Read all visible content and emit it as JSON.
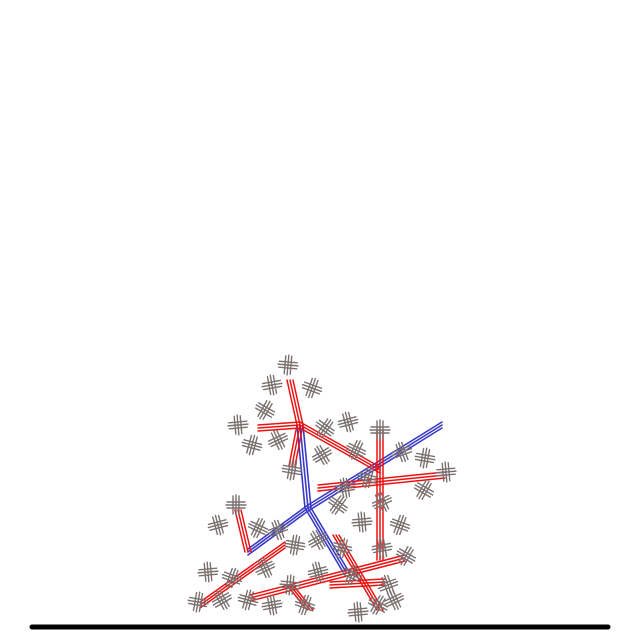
{
  "scene": {
    "background_color": "#ffffff",
    "ground_color": "#000000",
    "trunk_color": "#3a3ac8",
    "branch_color": "#ee1111",
    "twig_color": "#7a7070"
  }
}
